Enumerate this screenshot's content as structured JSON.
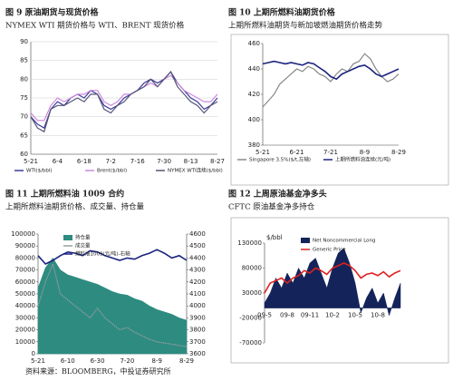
{
  "chart_data": [
    {
      "type": "line",
      "title": "图 9 原油期货与现货价格",
      "subtitle": "NYMEX WTI 期货价格与 WTI、BRENT 现货价格",
      "categories": [
        "5-21",
        null,
        null,
        null,
        "6-4",
        null,
        null,
        null,
        "6-18",
        null,
        null,
        null,
        "7-2",
        null,
        null,
        null,
        "7-16",
        null,
        null,
        null,
        "7-30",
        null,
        null,
        null,
        "8-13",
        null,
        null,
        null,
        "8-27"
      ],
      "ylim": [
        60,
        90
      ],
      "yticks": [
        60,
        65,
        70,
        75,
        80,
        85,
        90
      ],
      "grid": true,
      "series": [
        {
          "name": "WTI($/bbl)",
          "color": "#3a3a9a",
          "type": "line",
          "values": [
            70,
            68,
            67,
            72,
            74,
            73,
            75,
            76,
            75,
            77,
            76,
            73,
            72,
            73,
            75,
            76,
            77,
            79,
            80,
            79,
            80,
            82,
            79,
            77,
            75,
            74,
            72,
            73,
            75
          ]
        },
        {
          "name": "Brent($/bbl)",
          "color": "#cc88dd",
          "type": "line",
          "values": [
            71,
            69,
            69,
            73,
            75,
            74,
            75,
            76,
            76,
            77,
            77,
            74,
            73,
            74,
            76,
            76,
            77,
            78,
            79,
            78,
            80,
            81,
            79,
            77,
            76,
            75,
            74,
            74,
            76
          ]
        },
        {
          "name": "NYMEX WTI连续($/bbl)",
          "color": "#555577",
          "type": "line",
          "values": [
            70,
            67,
            66,
            72,
            73,
            73,
            74,
            75,
            74,
            76,
            76,
            72,
            71,
            73,
            74,
            76,
            77,
            78,
            80,
            78,
            80,
            82,
            78,
            76,
            74,
            73,
            71,
            73,
            74
          ]
        }
      ]
    },
    {
      "type": "line",
      "title": "图 10 上期所燃料油期货价格",
      "subtitle": "上期所燃料油期货与新加坡燃油期货价格走势",
      "categories": [
        "5-21",
        null,
        null,
        null,
        null,
        null,
        "6-21",
        null,
        null,
        null,
        null,
        null,
        "7-21",
        null,
        null,
        null,
        null,
        null,
        "8-9",
        null,
        null,
        null,
        null,
        null,
        "8-29"
      ],
      "ylim": [
        380,
        460
      ],
      "yticks": [
        380,
        400,
        420,
        440,
        460
      ],
      "grid": false,
      "series": [
        {
          "name": "Singapore 3.5%($/t,左轴)",
          "color": "#888888",
          "type": "line",
          "values": [
            410,
            415,
            420,
            428,
            432,
            436,
            440,
            438,
            442,
            440,
            436,
            434,
            430,
            436,
            440,
            438,
            444,
            446,
            452,
            448,
            440,
            434,
            430,
            432,
            436
          ]
        },
        {
          "name": "上期所燃料油连续(元/吨)",
          "color": "#1a237e",
          "type": "line",
          "values": [
            444,
            445,
            446,
            445,
            444,
            445,
            444,
            443,
            445,
            444,
            441,
            438,
            434,
            432,
            436,
            438,
            440,
            442,
            443,
            440,
            436,
            434,
            436,
            438,
            440
          ]
        }
      ]
    },
    {
      "type": "area",
      "title": "图 11 上期所燃料油 1009 合约",
      "subtitle": "上期所燃料油期货价格、成交量、持仓量",
      "categories": [
        "5-21",
        null,
        null,
        null,
        "6-10",
        null,
        null,
        null,
        "6-30",
        null,
        null,
        null,
        "7-20",
        null,
        null,
        null,
        "8-9",
        null,
        null,
        null,
        "8-29"
      ],
      "ylim": [
        0,
        100000
      ],
      "yticks": [
        0,
        10000,
        20000,
        30000,
        40000,
        50000,
        60000,
        70000,
        80000,
        90000,
        100000
      ],
      "y2lim": [
        3600,
        4600
      ],
      "y2ticks": [
        3600,
        3700,
        3800,
        3900,
        4000,
        4100,
        4200,
        4300,
        4400,
        4500,
        4600
      ],
      "grid": false,
      "series": [
        {
          "name": "持仓量",
          "color": "#2e8b80",
          "type": "area",
          "values": [
            55000,
            72000,
            80000,
            70000,
            66000,
            64000,
            62000,
            60000,
            58000,
            55000,
            52000,
            50000,
            49000,
            46000,
            44000,
            40000,
            37000,
            35000,
            33000,
            30000,
            28000
          ]
        },
        {
          "name": "成交量",
          "color": "#9aa0a0",
          "type": "line",
          "values": [
            40000,
            60000,
            75000,
            50000,
            45000,
            40000,
            35000,
            30000,
            38000,
            30000,
            25000,
            20000,
            22000,
            18000,
            15000,
            12000,
            10000,
            9000,
            8000,
            7000,
            6000
          ]
        },
        {
          "name": "燃料油1009(元/吨)-右轴",
          "color": "#1a237e",
          "type": "line",
          "axis": "y2",
          "values": [
            4420,
            4350,
            4380,
            4420,
            4450,
            4440,
            4420,
            4460,
            4450,
            4420,
            4400,
            4380,
            4400,
            4390,
            4420,
            4440,
            4470,
            4440,
            4400,
            4420,
            4380
          ]
        }
      ]
    },
    {
      "type": "area",
      "title": "图 12 上周原油基金净多头",
      "subtitle": "CFTC 原油基金净多持仓",
      "categories": [
        "09-5",
        null,
        null,
        null,
        "09-8",
        null,
        null,
        null,
        "09-11",
        null,
        null,
        null,
        "10-2",
        null,
        null,
        null,
        "10-5",
        null,
        null,
        null,
        "10-8",
        null,
        null,
        null,
        null
      ],
      "ylim": [
        -70000,
        130000
      ],
      "yticks": [
        -70000,
        -20000,
        30000,
        80000,
        130000
      ],
      "y2lim": [
        20,
        100
      ],
      "y2label": "$/bbl",
      "grid": false,
      "series": [
        {
          "name": "Net Noncommercial Long",
          "color": "#14245a",
          "type": "area",
          "values": [
            10000,
            30000,
            60000,
            40000,
            70000,
            50000,
            80000,
            60000,
            90000,
            100000,
            70000,
            40000,
            80000,
            110000,
            120000,
            90000,
            50000,
            -10000,
            20000,
            40000,
            10000,
            30000,
            -15000,
            20000,
            50000
          ]
        },
        {
          "name": "Generic Price",
          "color": "#e02020",
          "type": "line",
          "axis": "y2",
          "values": [
            60,
            68,
            70,
            72,
            68,
            72,
            74,
            78,
            76,
            80,
            78,
            75,
            80,
            82,
            84,
            82,
            78,
            72,
            75,
            76,
            74,
            77,
            73,
            76,
            78
          ]
        }
      ]
    }
  ],
  "footer": "资料来源：BLOOMBERG，中投证券研究所"
}
